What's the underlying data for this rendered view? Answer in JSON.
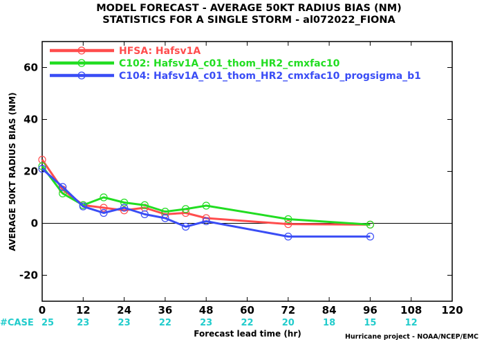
{
  "chart_data": {
    "type": "line",
    "title": "MODEL FORECAST - AVERAGE 50KT RADIUS BIAS (NM)",
    "subtitle": "STATISTICS FOR A SINGLE STORM - al072022_FIONA",
    "xlabel": "Forecast lead time (hr)",
    "ylabel": "AVERAGE 50KT RADIUS BIAS (NM)",
    "xlim": [
      0,
      120
    ],
    "ylim": [
      -30,
      70
    ],
    "xticks": [
      0,
      12,
      24,
      36,
      48,
      60,
      72,
      84,
      96,
      108,
      120
    ],
    "yticks": [
      -20,
      0,
      20,
      40,
      60
    ],
    "grid": false,
    "legend_position": "top-left",
    "zero_line": true,
    "series": [
      {
        "name": "HFSA: Hafsv1A",
        "color": "#ff4d4d",
        "x": [
          0,
          6,
          12,
          18,
          24,
          30,
          36,
          42,
          48,
          72,
          96
        ],
        "y": [
          24.5,
          13,
          7,
          6,
          5,
          6,
          3.5,
          4,
          2,
          -0.3,
          -0.5
        ]
      },
      {
        "name": "C102: Hafsv1A_c01_thom_HR2_cmxfac10",
        "color": "#22dd22",
        "x": [
          0,
          6,
          12,
          18,
          24,
          30,
          36,
          42,
          48,
          72,
          96
        ],
        "y": [
          22,
          11.5,
          7,
          10,
          8,
          7,
          4.5,
          5.5,
          6.8,
          1.6,
          -0.5
        ]
      },
      {
        "name": "C104: Hafsv1A_c01_thom_HR2_cmxfac10_progsigma_b1",
        "color": "#3a4df5",
        "x": [
          0,
          6,
          12,
          18,
          24,
          30,
          36,
          42,
          48,
          72,
          96
        ],
        "y": [
          21,
          14,
          6.5,
          4,
          6,
          3.5,
          2,
          -1.3,
          0.8,
          -5.1,
          -5.1
        ]
      }
    ],
    "cases": {
      "label": "#CASE",
      "color": "#22cccc",
      "x": [
        0,
        12,
        24,
        36,
        48,
        60,
        72,
        84,
        96,
        108
      ],
      "values": [
        "25",
        "23",
        "23",
        "22",
        "23",
        "22",
        "20",
        "18",
        "15",
        "12"
      ]
    },
    "credit": "Hurricane project - NOAA/NCEP/EMC"
  }
}
